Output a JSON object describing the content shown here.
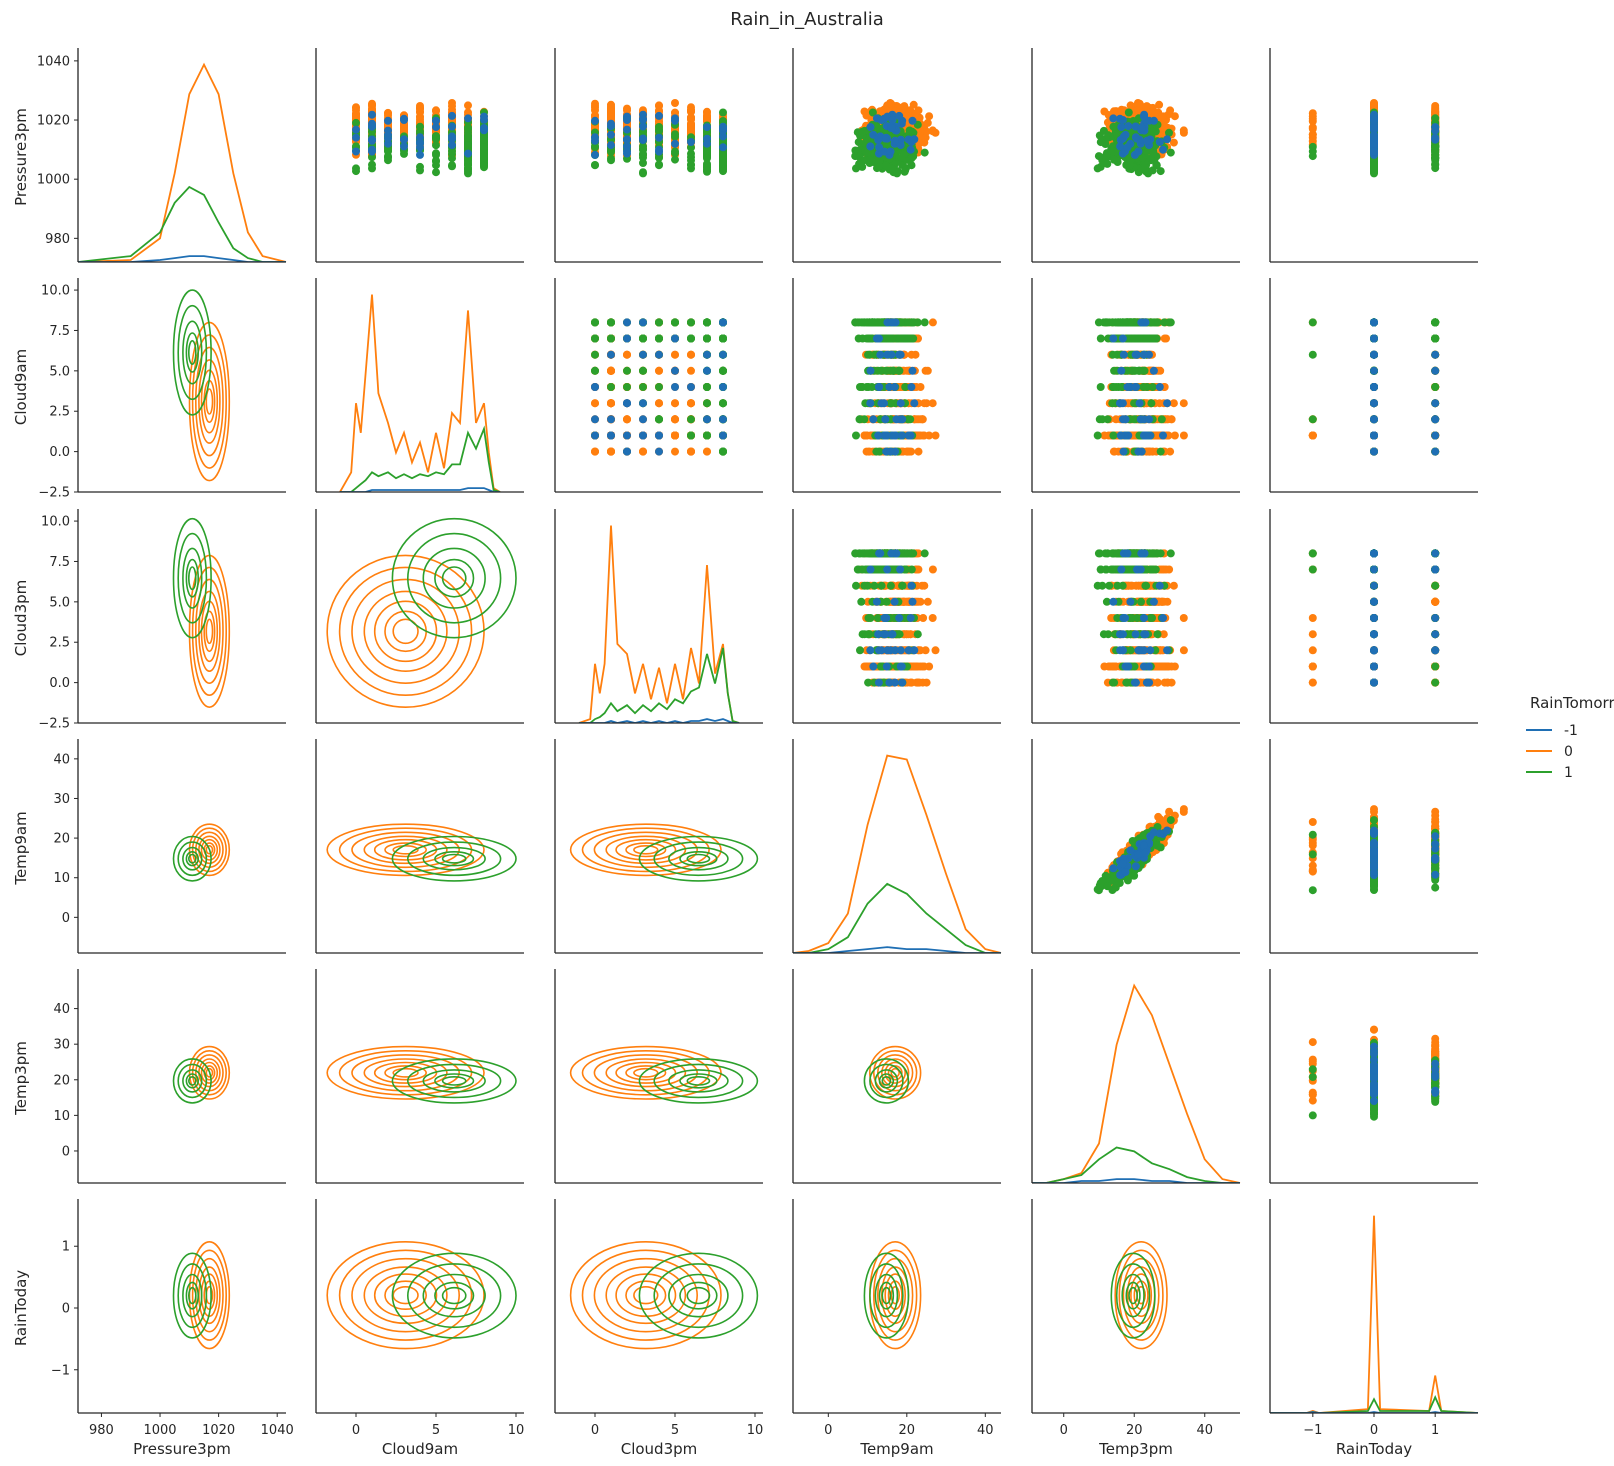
{
  "chart_data": {
    "type": "pairplot",
    "title": "Rain_in_Australia",
    "variables": [
      "Pressure3pm",
      "Cloud9am",
      "Cloud3pm",
      "Temp9am",
      "Temp3pm",
      "RainToday"
    ],
    "hue": "RainTomorrow",
    "legend": {
      "title": "RainTomorrow",
      "placement": "right",
      "entries": [
        {
          "label": "-1",
          "color": "#1f6fb4"
        },
        {
          "label": "0",
          "color": "#ff7f0e"
        },
        {
          "label": "1",
          "color": "#2ca02c"
        }
      ]
    },
    "diagonal": "kde",
    "upper": "scatter",
    "lower": "kde contours",
    "axes": [
      {
        "name": "Pressure3pm",
        "range": [
          972,
          1043
        ],
        "ticks": [
          "980",
          "1000",
          "1020",
          "1040"
        ],
        "tick_values": [
          980,
          1000,
          1020,
          1040
        ]
      },
      {
        "name": "Cloud9am",
        "range": [
          -2.5,
          10.5
        ],
        "ticks": [
          "0",
          "5",
          "10"
        ],
        "tick_values": [
          0,
          5,
          10
        ],
        "y_ticks": [
          "−2.5",
          "0.0",
          "2.5",
          "5.0",
          "7.5",
          "10.0"
        ],
        "y_tick_values": [
          -2.5,
          0,
          2.5,
          5,
          7.5,
          10
        ]
      },
      {
        "name": "Cloud3pm",
        "range": [
          -2.5,
          10.5
        ],
        "ticks": [
          "0",
          "5",
          "10"
        ],
        "tick_values": [
          0,
          5,
          10
        ],
        "y_ticks": [
          "−2.5",
          "0.0",
          "2.5",
          "5.0",
          "7.5",
          "10.0"
        ],
        "y_tick_values": [
          -2.5,
          0,
          2.5,
          5,
          7.5,
          10
        ]
      },
      {
        "name": "Temp9am",
        "range": [
          -9,
          44
        ],
        "ticks": [
          "0",
          "20",
          "40"
        ],
        "tick_values": [
          0,
          20,
          40
        ],
        "y_ticks": [
          "0",
          "10",
          "20",
          "30",
          "40"
        ],
        "y_tick_values": [
          0,
          10,
          20,
          30,
          40
        ]
      },
      {
        "name": "Temp3pm",
        "range": [
          -9,
          50
        ],
        "ticks": [
          "0",
          "20",
          "40"
        ],
        "tick_values": [
          0,
          20,
          40
        ],
        "y_ticks": [
          "0",
          "10",
          "20",
          "30",
          "40"
        ],
        "y_tick_values": [
          0,
          10,
          20,
          30,
          40
        ]
      },
      {
        "name": "RainToday",
        "range": [
          -1.7,
          1.7
        ],
        "ticks": [
          "−1",
          "0",
          "1"
        ],
        "tick_values": [
          -1,
          0,
          1
        ],
        "y_ticks": [
          "−1",
          "0",
          "1"
        ],
        "y_tick_values": [
          -1,
          0,
          1
        ]
      }
    ],
    "diagonal_kde": {
      "Pressure3pm": {
        "x": [
          972,
          990,
          1000,
          1005,
          1010,
          1015,
          1020,
          1025,
          1030,
          1035,
          1043
        ],
        "series": [
          {
            "name": "0",
            "values": [
              0,
              0.01,
              0.12,
              0.45,
              0.85,
              1.0,
              0.85,
              0.45,
              0.15,
              0.03,
              0
            ]
          },
          {
            "name": "1",
            "values": [
              0,
              0.03,
              0.15,
              0.3,
              0.38,
              0.34,
              0.2,
              0.07,
              0.02,
              0,
              0
            ]
          },
          {
            "name": "-1",
            "values": [
              0,
              0,
              0.01,
              0.02,
              0.03,
              0.03,
              0.02,
              0.01,
              0,
              0,
              0
            ]
          }
        ]
      },
      "Cloud9am": {
        "x": [
          -1,
          -0.3,
          0,
          0.3,
          0.6,
          1,
          1.4,
          2,
          2.5,
          3,
          3.5,
          4,
          4.5,
          5,
          5.5,
          6,
          6.5,
          7,
          7.5,
          8,
          8.3,
          8.6,
          9
        ],
        "series": [
          {
            "name": "0",
            "values": [
              0,
              0.1,
              0.45,
              0.3,
              0.6,
              1.0,
              0.5,
              0.35,
              0.2,
              0.3,
              0.15,
              0.25,
              0.1,
              0.3,
              0.12,
              0.4,
              0.35,
              0.92,
              0.35,
              0.45,
              0.2,
              0.02,
              0
            ]
          },
          {
            "name": "1",
            "values": [
              0,
              0,
              0.02,
              0.04,
              0.06,
              0.1,
              0.08,
              0.1,
              0.07,
              0.09,
              0.07,
              0.09,
              0.08,
              0.1,
              0.09,
              0.14,
              0.14,
              0.3,
              0.22,
              0.32,
              0.15,
              0.01,
              0
            ]
          },
          {
            "name": "-1",
            "values": [
              0,
              0,
              0,
              0,
              0,
              0.01,
              0.01,
              0.01,
              0.01,
              0.01,
              0.01,
              0.01,
              0.01,
              0.01,
              0.01,
              0.01,
              0.01,
              0.02,
              0.02,
              0.02,
              0.01,
              0,
              0
            ]
          }
        ]
      },
      "Cloud3pm": {
        "x": [
          -1,
          -0.3,
          0,
          0.3,
          0.6,
          1,
          1.4,
          2,
          2.5,
          3,
          3.5,
          4,
          4.5,
          5,
          5.5,
          6,
          6.5,
          7,
          7.5,
          8,
          8.3,
          8.6,
          9
        ],
        "series": [
          {
            "name": "0",
            "values": [
              0,
              0.02,
              0.3,
              0.15,
              0.3,
              1.0,
              0.4,
              0.35,
              0.15,
              0.3,
              0.12,
              0.28,
              0.1,
              0.3,
              0.12,
              0.38,
              0.2,
              0.8,
              0.25,
              0.4,
              0.15,
              0.01,
              0
            ]
          },
          {
            "name": "1",
            "values": [
              0,
              0,
              0.02,
              0.03,
              0.05,
              0.1,
              0.06,
              0.09,
              0.05,
              0.09,
              0.06,
              0.1,
              0.07,
              0.12,
              0.1,
              0.16,
              0.18,
              0.35,
              0.2,
              0.38,
              0.15,
              0.01,
              0
            ]
          },
          {
            "name": "-1",
            "values": [
              0,
              0,
              0,
              0,
              0,
              0.01,
              0,
              0.01,
              0,
              0.01,
              0,
              0.01,
              0,
              0.01,
              0,
              0.01,
              0.01,
              0.02,
              0.01,
              0.02,
              0.01,
              0,
              0
            ]
          }
        ]
      },
      "Temp9am": {
        "x": [
          -9,
          -5,
          0,
          5,
          10,
          15,
          20,
          25,
          30,
          35,
          40,
          44
        ],
        "series": [
          {
            "name": "0",
            "values": [
              0,
              0.01,
              0.05,
              0.2,
              0.65,
              1.0,
              0.98,
              0.7,
              0.4,
              0.12,
              0.02,
              0
            ]
          },
          {
            "name": "1",
            "values": [
              0,
              0,
              0.02,
              0.08,
              0.25,
              0.35,
              0.3,
              0.2,
              0.12,
              0.04,
              0,
              0
            ]
          },
          {
            "name": "-1",
            "values": [
              0,
              0,
              0,
              0.01,
              0.02,
              0.03,
              0.02,
              0.02,
              0.01,
              0,
              0,
              0
            ]
          }
        ]
      },
      "Temp3pm": {
        "x": [
          -9,
          -5,
          0,
          5,
          10,
          15,
          20,
          25,
          30,
          35,
          40,
          45,
          50
        ],
        "series": [
          {
            "name": "0",
            "values": [
              0,
              0,
              0.02,
              0.05,
              0.2,
              0.7,
              1.0,
              0.85,
              0.6,
              0.35,
              0.12,
              0.02,
              0
            ]
          },
          {
            "name": "1",
            "values": [
              0,
              0,
              0.02,
              0.04,
              0.12,
              0.18,
              0.16,
              0.1,
              0.07,
              0.03,
              0.01,
              0,
              0
            ]
          },
          {
            "name": "-1",
            "values": [
              0,
              0,
              0,
              0.01,
              0.01,
              0.02,
              0.02,
              0.01,
              0.01,
              0,
              0,
              0,
              0
            ]
          }
        ]
      },
      "RainToday": {
        "x": [
          -1.7,
          -1.1,
          -1,
          -0.9,
          -0.1,
          0,
          0.1,
          0.9,
          1,
          1.1,
          1.7
        ],
        "series": [
          {
            "name": "0",
            "values": [
              0,
              0,
              0.01,
              0,
              0.02,
              1.0,
              0.02,
              0.01,
              0.19,
              0.01,
              0
            ]
          },
          {
            "name": "1",
            "values": [
              0,
              0,
              0.005,
              0,
              0.01,
              0.07,
              0.01,
              0.01,
              0.08,
              0.01,
              0
            ]
          },
          {
            "name": "-1",
            "values": [
              0,
              0,
              0.005,
              0,
              0,
              0.005,
              0,
              0,
              0.005,
              0,
              0
            ]
          }
        ]
      }
    }
  }
}
